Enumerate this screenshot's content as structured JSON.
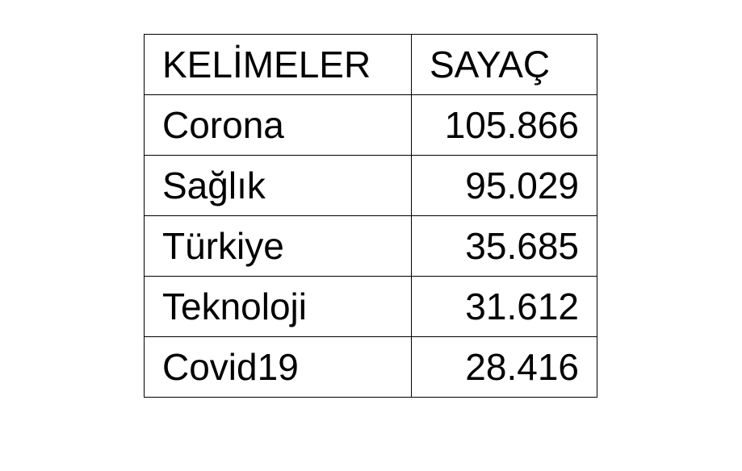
{
  "table": {
    "headers": {
      "word": "KELİMELER",
      "count": "SAYAÇ"
    },
    "rows": [
      {
        "word": "Corona",
        "count": "105.866"
      },
      {
        "word": "Sağlık",
        "count": "95.029"
      },
      {
        "word": "Türkiye",
        "count": "35.685"
      },
      {
        "word": "Teknoloji",
        "count": "31.612"
      },
      {
        "word": "Covid19",
        "count": "28.416"
      }
    ]
  }
}
